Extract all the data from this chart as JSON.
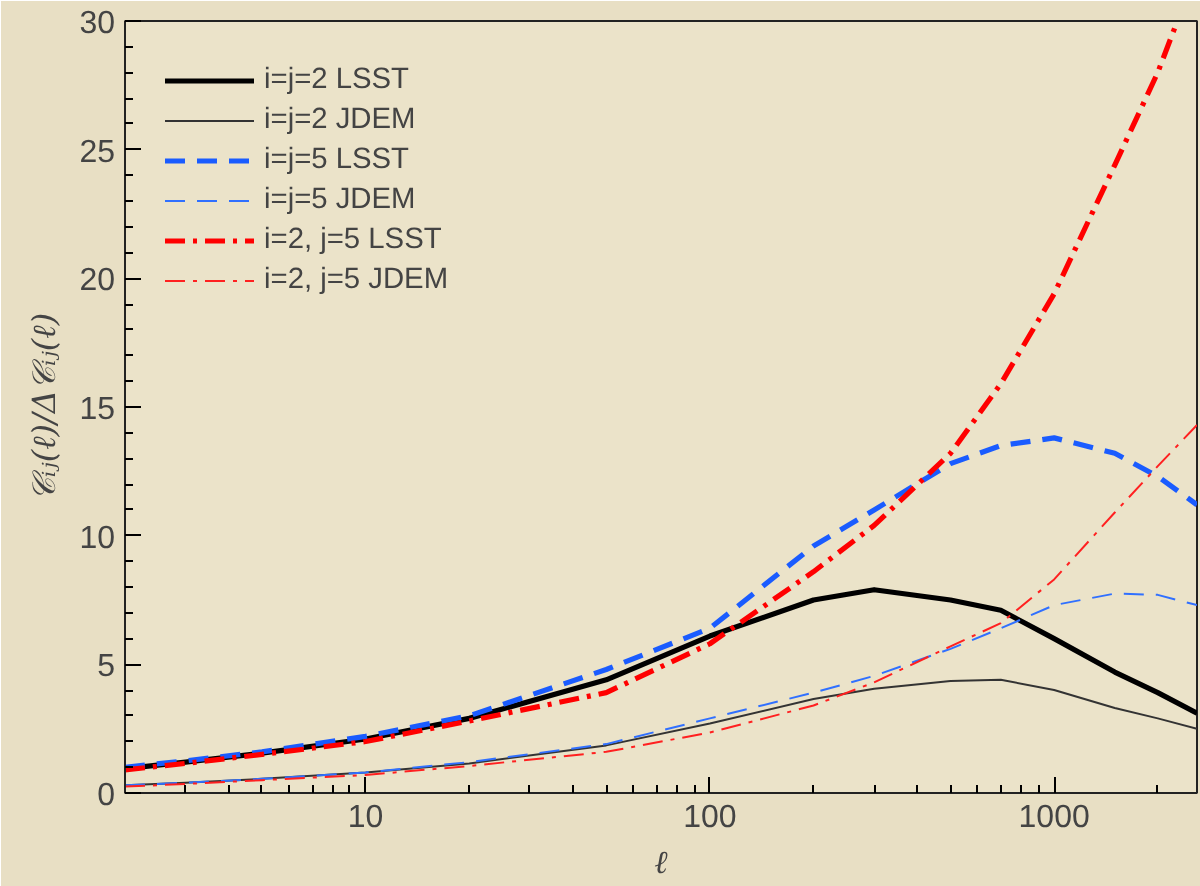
{
  "chart_data": {
    "type": "line",
    "xlabel": "ℓ",
    "ylabel": "𝒞ᵢⱼ(ℓ)/Δ𝒞ᵢⱼ(ℓ)",
    "log": "x",
    "xlim": [
      2,
      2600
    ],
    "ylim": [
      0,
      30
    ],
    "xticks": [
      10,
      100,
      1000
    ],
    "yticks": [
      0,
      5,
      10,
      15,
      20,
      25,
      30
    ],
    "grid": false,
    "legend": "top left",
    "marker": "none",
    "x": [
      2,
      3,
      5,
      10,
      20,
      50,
      100,
      200,
      300,
      500,
      700,
      1000,
      1500,
      2000,
      2600
    ],
    "series": [
      {
        "name": "i=j=2 LSST",
        "color": "#000000",
        "line_style": "solid",
        "values": [
          0.95,
          1.2,
          1.55,
          2.1,
          2.9,
          4.4,
          6.1,
          7.5,
          7.9,
          7.5,
          7.1,
          6.0,
          4.7,
          3.9,
          3.1
        ]
      },
      {
        "name": "i=j=2 JDEM",
        "color": "#333333",
        "line_style": "solid",
        "values": [
          0.3,
          0.4,
          0.55,
          0.8,
          1.15,
          1.85,
          2.7,
          3.65,
          4.05,
          4.35,
          4.4,
          4.0,
          3.3,
          2.9,
          2.5
        ]
      },
      {
        "name": "i=j=5 LSST",
        "color": "#1a5cff",
        "line_style": "dashed",
        "values": [
          1.0,
          1.25,
          1.6,
          2.2,
          3.0,
          4.8,
          6.4,
          9.6,
          11.0,
          12.8,
          13.5,
          13.8,
          13.2,
          12.3,
          11.2
        ]
      },
      {
        "name": "i=j=5 JDEM",
        "color": "#3070ff",
        "line_style": "dashed",
        "values": [
          0.3,
          0.4,
          0.55,
          0.8,
          1.2,
          1.9,
          2.9,
          3.9,
          4.55,
          5.6,
          6.4,
          7.3,
          7.75,
          7.7,
          7.3
        ]
      },
      {
        "name": "i=2, j=5 LSST",
        "color": "#ff0000",
        "line_style": "dashdot",
        "x": [
          2,
          3,
          5,
          10,
          20,
          50,
          100,
          200,
          300,
          500,
          700,
          1000,
          1500,
          2000,
          2280
        ],
        "values": [
          0.9,
          1.15,
          1.5,
          2.0,
          2.8,
          3.9,
          5.8,
          8.6,
          10.4,
          13.2,
          15.9,
          19.4,
          24.4,
          28.0,
          30.0
        ]
      },
      {
        "name": "i=2, j=5 JDEM",
        "color": "#ff2020",
        "line_style": "dashdot",
        "values": [
          0.25,
          0.35,
          0.5,
          0.7,
          1.05,
          1.6,
          2.35,
          3.4,
          4.3,
          5.7,
          6.6,
          8.3,
          10.9,
          12.7,
          14.3
        ]
      }
    ]
  }
}
